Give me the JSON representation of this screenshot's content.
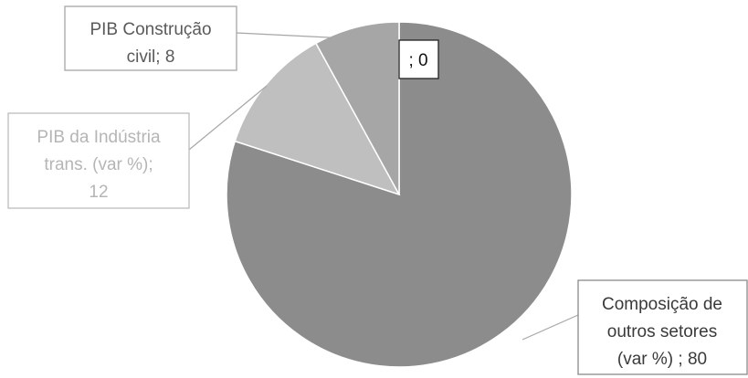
{
  "chart_data": {
    "type": "pie",
    "slices": [
      {
        "label": "",
        "value": 0,
        "data_label": [
          "; 0"
        ],
        "color": "#8c8c8c",
        "label_color": "#111111",
        "box_border": "#222222"
      },
      {
        "label": "Composição de outros setores (var %)",
        "value": 80,
        "data_label": [
          "Composição de",
          "outros setores",
          "(var %) ; 80"
        ],
        "color": "#8c8c8c",
        "label_color": "#3a3a3a",
        "box_border": "#8a8a8a"
      },
      {
        "label": "PIB da Indústria trans. (var %)",
        "value": 12,
        "data_label": [
          "PIB da Indústria",
          "trans. (var %);",
          "12"
        ],
        "color": "#bfbfbf",
        "label_color": "#b5b5b5",
        "box_border": "#bdbdbd"
      },
      {
        "label": "PIB Construção civil",
        "value": 8,
        "data_label": [
          "PIB Construção",
          "civil; 8"
        ],
        "color": "#a6a6a6",
        "label_color": "#5a5a5a",
        "box_border": "#a6a6a6"
      }
    ],
    "start_angle": "12 o'clock",
    "direction": "clockwise",
    "legend": "none",
    "title": ""
  }
}
